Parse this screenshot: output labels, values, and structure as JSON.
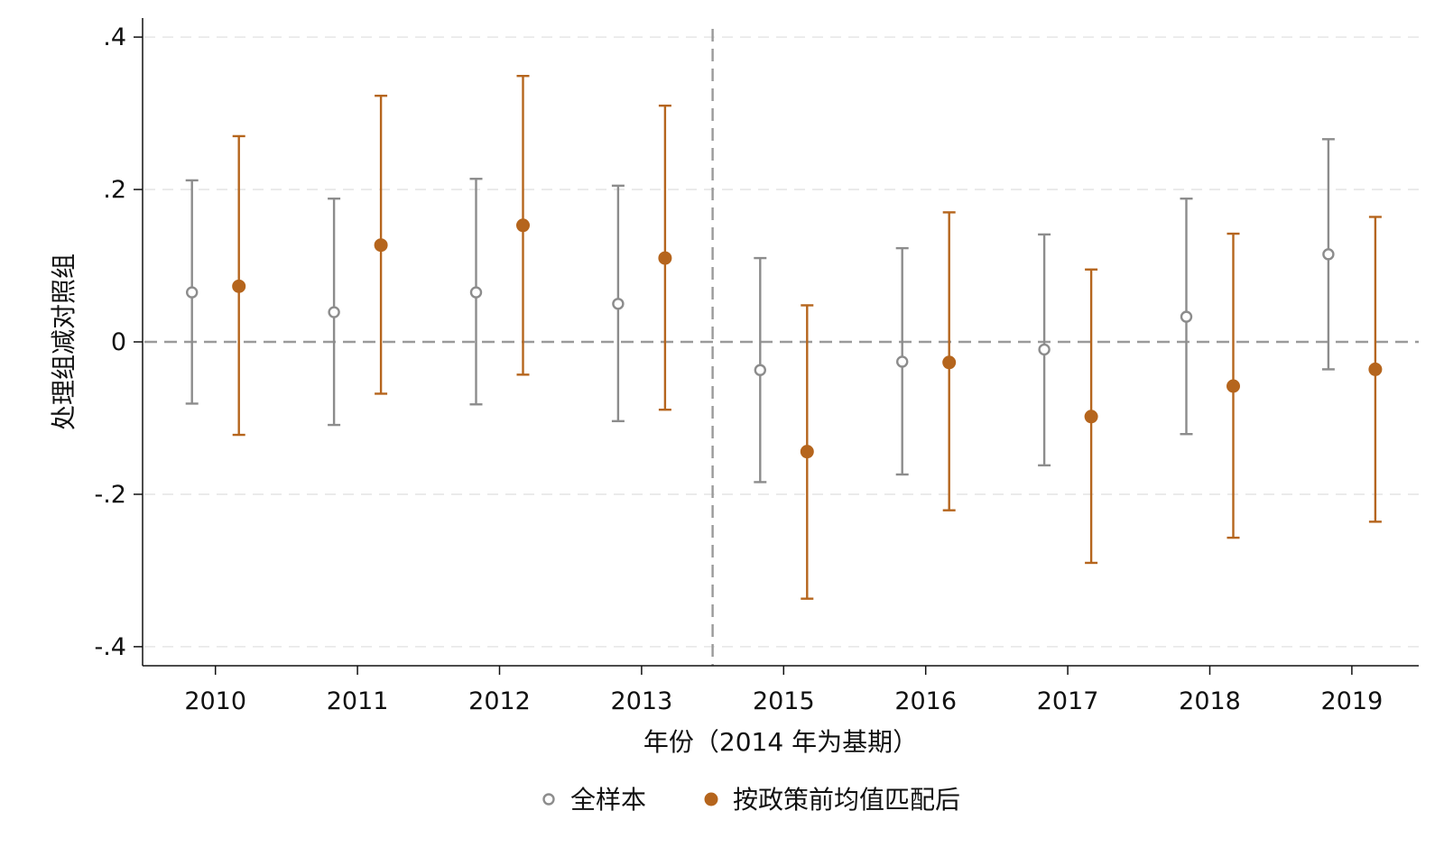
{
  "chart_data": {
    "type": "scatter",
    "subtype": "coefficient-plot-with-95ci",
    "title": "",
    "xlabel": "年份（2014 年为基期）",
    "ylabel": "处理组减对照组",
    "categories": [
      "2010",
      "2011",
      "2012",
      "2013",
      "2015",
      "2016",
      "2017",
      "2018",
      "2019"
    ],
    "ylim": [
      -0.425,
      0.425
    ],
    "yticks": [
      {
        "value": -0.4,
        "label": "-.4"
      },
      {
        "value": -0.2,
        "label": "-.2"
      },
      {
        "value": 0,
        "label": "0"
      },
      {
        "value": 0.2,
        "label": ".2"
      },
      {
        "value": 0.4,
        "label": ".4"
      }
    ],
    "grid": true,
    "reference_lines": {
      "horizontal_at": 0,
      "vertical_between": [
        "2013",
        "2015"
      ],
      "vertical_meaning": "2014 base year"
    },
    "legend_position": "bottom",
    "series": [
      {
        "name": "全样本",
        "marker": "hollow-circle",
        "color": "#8c8c8c",
        "values": [
          0.065,
          0.039,
          0.065,
          0.05,
          -0.037,
          -0.026,
          -0.01,
          0.033,
          0.115
        ],
        "ci_low": [
          -0.081,
          -0.109,
          -0.082,
          -0.104,
          -0.184,
          -0.174,
          -0.162,
          -0.121,
          -0.036
        ],
        "ci_high": [
          0.212,
          0.188,
          0.214,
          0.205,
          0.11,
          0.123,
          0.141,
          0.188,
          0.266
        ]
      },
      {
        "name": "按政策前均值匹配后",
        "marker": "filled-circle",
        "color": "#b5651d",
        "values": [
          0.073,
          0.127,
          0.153,
          0.11,
          -0.144,
          -0.027,
          -0.098,
          -0.058,
          -0.036
        ],
        "ci_low": [
          -0.122,
          -0.068,
          -0.043,
          -0.089,
          -0.337,
          -0.221,
          -0.29,
          -0.257,
          -0.236
        ],
        "ci_high": [
          0.27,
          0.323,
          0.349,
          0.31,
          0.048,
          0.17,
          0.095,
          0.142,
          0.164
        ]
      }
    ]
  }
}
